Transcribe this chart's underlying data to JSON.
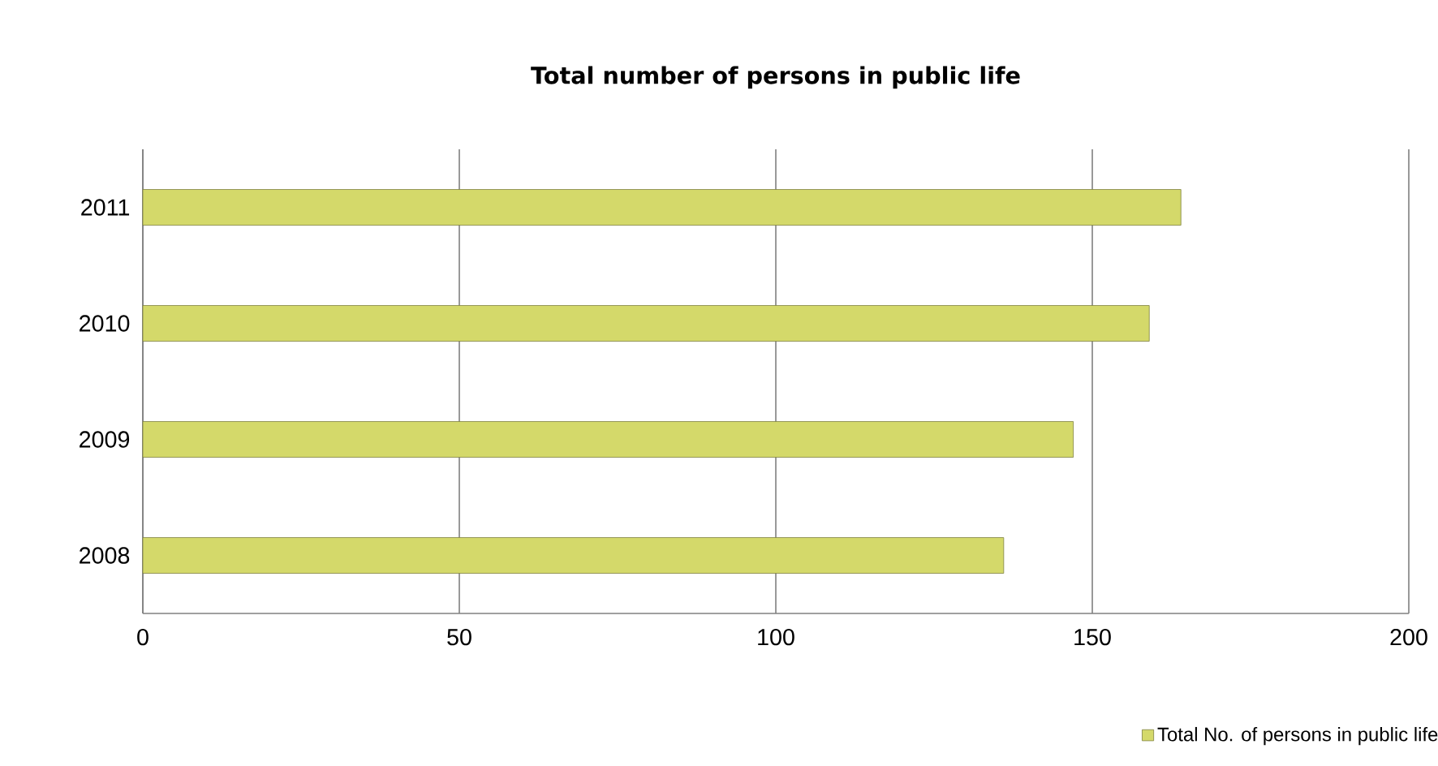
{
  "chart_data": {
    "type": "bar",
    "orientation": "horizontal",
    "title": "Total number of persons in public life",
    "categories": [
      "2011",
      "2010",
      "2009",
      "2008"
    ],
    "series": [
      {
        "name": "Total No. of persons in public life",
        "color": "#d4d96a",
        "values": [
          164,
          159,
          147,
          136
        ]
      }
    ],
    "xlim": [
      0,
      200
    ],
    "xticks": [
      0,
      50,
      100,
      150,
      200
    ],
    "grid": "x",
    "legend": "bottom right"
  }
}
